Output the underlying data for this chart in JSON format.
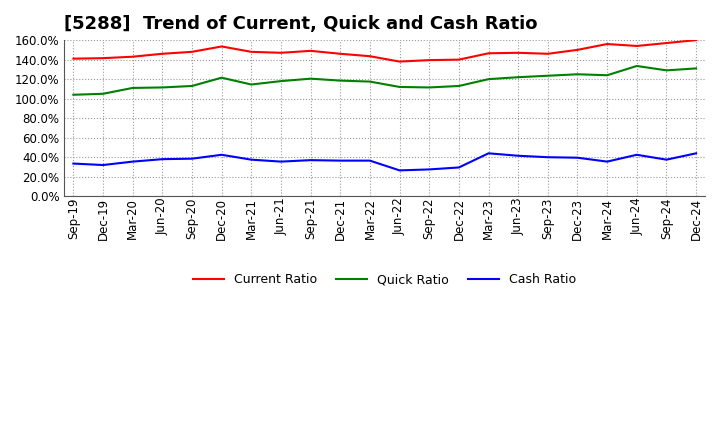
{
  "title": "[5288]  Trend of Current, Quick and Cash Ratio",
  "x_labels": [
    "Sep-19",
    "Dec-19",
    "Mar-20",
    "Jun-20",
    "Sep-20",
    "Dec-20",
    "Mar-21",
    "Jun-21",
    "Sep-21",
    "Dec-21",
    "Mar-22",
    "Jun-22",
    "Sep-22",
    "Dec-22",
    "Mar-23",
    "Jun-23",
    "Sep-23",
    "Dec-23",
    "Mar-24",
    "Jun-24",
    "Sep-24",
    "Dec-24"
  ],
  "current_ratio": [
    1.41,
    1.415,
    1.43,
    1.46,
    1.48,
    1.535,
    1.48,
    1.47,
    1.49,
    1.46,
    1.435,
    1.38,
    1.395,
    1.4,
    1.465,
    1.47,
    1.46,
    1.5,
    1.56,
    1.54,
    1.57,
    1.6
  ],
  "quick_ratio": [
    1.04,
    1.05,
    1.11,
    1.115,
    1.13,
    1.215,
    1.145,
    1.18,
    1.205,
    1.185,
    1.175,
    1.12,
    1.115,
    1.13,
    1.2,
    1.22,
    1.235,
    1.25,
    1.24,
    1.335,
    1.29,
    1.31
  ],
  "cash_ratio": [
    0.335,
    0.32,
    0.355,
    0.38,
    0.385,
    0.425,
    0.375,
    0.355,
    0.37,
    0.365,
    0.365,
    0.265,
    0.275,
    0.295,
    0.44,
    0.415,
    0.4,
    0.395,
    0.355,
    0.425,
    0.375,
    0.44
  ],
  "current_color": "#FF0000",
  "quick_color": "#008000",
  "cash_color": "#0000FF",
  "ylim": [
    0.0,
    1.6
  ],
  "yticks": [
    0.0,
    0.2,
    0.4,
    0.6,
    0.8,
    1.0,
    1.2,
    1.4,
    1.6
  ],
  "background_color": "#FFFFFF",
  "grid_color": "#999999",
  "legend_current": "Current Ratio",
  "legend_quick": "Quick Ratio",
  "legend_cash": "Cash Ratio",
  "title_fontsize": 13,
  "tick_fontsize": 8.5,
  "legend_fontsize": 9
}
